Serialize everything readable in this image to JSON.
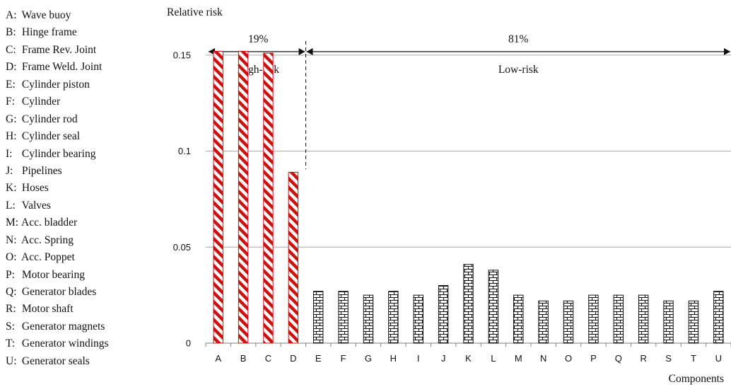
{
  "legend": [
    {
      "key": "A:",
      "name": "Wave buoy"
    },
    {
      "key": "B:",
      "name": "Hinge frame"
    },
    {
      "key": "C:",
      "name": "Frame Rev. Joint"
    },
    {
      "key": "D:",
      "name": "Frame Weld. Joint"
    },
    {
      "key": "E:",
      "name": "Cylinder piston"
    },
    {
      "key": "F:",
      "name": "Cylinder"
    },
    {
      "key": "G:",
      "name": "Cylinder rod"
    },
    {
      "key": "H:",
      "name": "Cylinder seal"
    },
    {
      "key": "I:",
      "name": "Cylinder bearing"
    },
    {
      "key": "J:",
      "name": "Pipelines"
    },
    {
      "key": "K:",
      "name": "Hoses"
    },
    {
      "key": "L:",
      "name": "Valves"
    },
    {
      "key": "M:",
      "name": "Acc. bladder"
    },
    {
      "key": "N:",
      "name": "Acc. Spring"
    },
    {
      "key": "O:",
      "name": "Acc. Poppet"
    },
    {
      "key": "P:",
      "name": "Motor bearing"
    },
    {
      "key": "Q:",
      "name": "Generator blades"
    },
    {
      "key": "R:",
      "name": "Motor shaft"
    },
    {
      "key": "S:",
      "name": "Generator magnets"
    },
    {
      "key": "T:",
      "name": "Generator windings"
    },
    {
      "key": "U:",
      "name": "Generator seals"
    }
  ],
  "chart_data": {
    "type": "bar",
    "ylabel": "Relative risk",
    "xlabel": "Components",
    "categories": [
      "A",
      "B",
      "C",
      "D",
      "E",
      "F",
      "G",
      "H",
      "I",
      "J",
      "K",
      "L",
      "M",
      "N",
      "O",
      "P",
      "Q",
      "R",
      "S",
      "T",
      "U"
    ],
    "values": [
      0.152,
      0.152,
      0.151,
      0.089,
      0.027,
      0.027,
      0.025,
      0.027,
      0.025,
      0.03,
      0.041,
      0.038,
      0.025,
      0.022,
      0.022,
      0.025,
      0.025,
      0.025,
      0.022,
      0.022,
      0.027
    ],
    "ylim": [
      0,
      0.175
    ],
    "yticks": [
      {
        "value": 0,
        "label": "0"
      },
      {
        "value": 0.05,
        "label": "0.05"
      },
      {
        "value": 0.1,
        "label": "0.1"
      },
      {
        "value": 0.15,
        "label": "0.15"
      }
    ],
    "grid": true,
    "groups": [
      {
        "name": "High-risk",
        "share": "19%",
        "categories": [
          "A",
          "B",
          "C",
          "D"
        ],
        "color": "#cc1111",
        "pattern": "diagonal-stripes"
      },
      {
        "name": "Low-risk",
        "share": "81%",
        "categories": [
          "E",
          "F",
          "G",
          "H",
          "I",
          "J",
          "K",
          "L",
          "M",
          "N",
          "O",
          "P",
          "Q",
          "R",
          "S",
          "T",
          "U"
        ],
        "color": "#111111",
        "pattern": "brick"
      }
    ]
  }
}
